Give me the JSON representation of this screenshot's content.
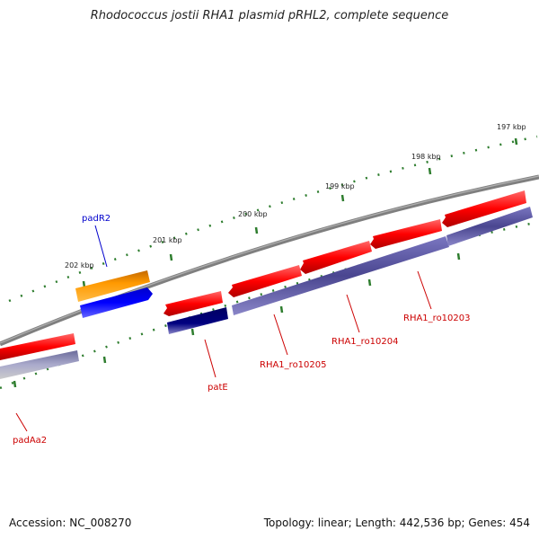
{
  "title": "Rhodococcus jostii RHA1 plasmid pRHL2, complete sequence",
  "footer": {
    "accession": "Accession: NC_008270",
    "topology": "Topology: linear; Length: 442,536 bp; Genes: 454"
  },
  "kbp_labels": [
    "197 kbp",
    "198 kbp",
    "199 kbp",
    "200 kbp",
    "201 kbp",
    "202 kbp"
  ],
  "gene_labels": [
    "padR2",
    "padAa2",
    "patE",
    "RHA1_ro10205",
    "RHA1_ro10204",
    "RHA1_ro10203"
  ],
  "colors": {
    "backbone": "#808080",
    "ticks": "#2e7d2e",
    "cds_red": "#ff0000",
    "rna_blue": "#5a55a6",
    "orange": "#ff9900",
    "bright_blue": "#0000ff",
    "navy": "#000080",
    "label_red": "#cc0000",
    "label_blue": "#0000cc"
  }
}
